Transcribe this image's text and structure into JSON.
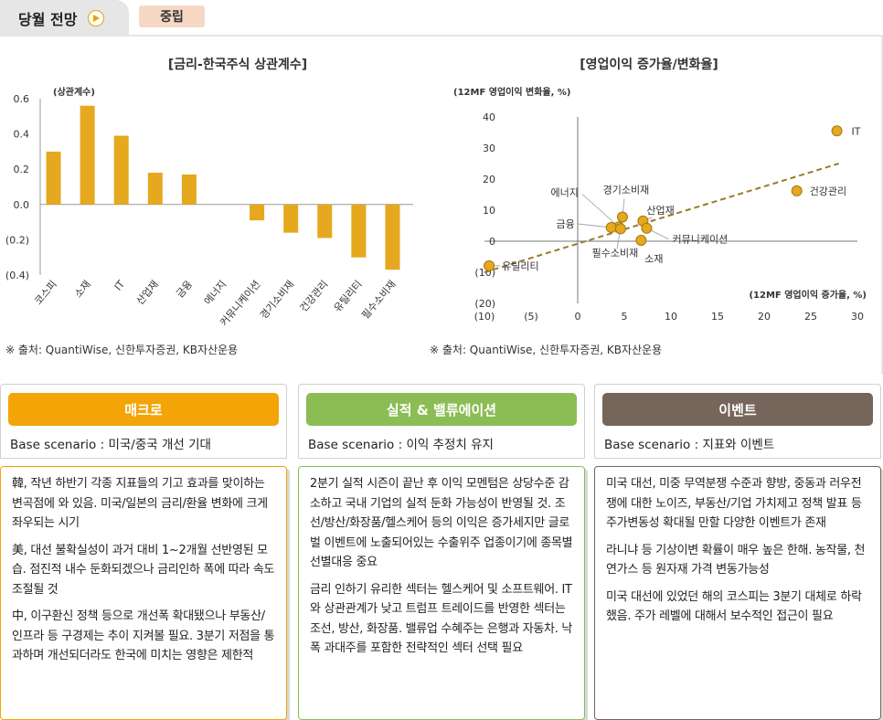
{
  "header": {
    "tab_label": "당월 전망",
    "badge": "중립"
  },
  "colors": {
    "gold": "#e5a81e",
    "macro": "#f3a407",
    "earnings": "#8bbd54",
    "events": "#75655a",
    "trend": "#9a7a2a"
  },
  "chart_data": [
    {
      "type": "bar",
      "title": "[금리-한국주식 상관계수]",
      "ylabel": "(상관계수)",
      "categories": [
        "코스피",
        "소재",
        "IT",
        "산업재",
        "금융",
        "에너지",
        "커뮤니케이션",
        "경기소비재",
        "건강관리",
        "유틸리티",
        "필수소비재"
      ],
      "values": [
        0.3,
        0.56,
        0.39,
        0.18,
        0.17,
        0.0,
        -0.09,
        -0.16,
        -0.19,
        -0.3,
        -0.37
      ],
      "ylim": [
        -0.4,
        0.6
      ],
      "yticks": [
        0.6,
        0.4,
        0.2,
        0.0,
        -0.2,
        -0.4
      ],
      "ytick_labels": [
        "0.6",
        "0.4",
        "0.2",
        "0.0",
        "(0.2)",
        "(0.4)"
      ]
    },
    {
      "type": "scatter",
      "title": "[영업이익 증가율/변화율]",
      "ylabel": "(12MF 영업이익 변화율, %)",
      "xlabel": "(12MF 영업이익 증가율, %)",
      "xlim": [
        -10,
        30
      ],
      "ylim": [
        -20,
        40
      ],
      "xticks": [
        -10,
        -5,
        0,
        5,
        10,
        15,
        20,
        25,
        30
      ],
      "xtick_labels": [
        "(10)",
        "(5)",
        "0",
        "5",
        "10",
        "15",
        "20",
        "25",
        "30"
      ],
      "yticks": [
        40,
        30,
        20,
        10,
        0,
        -10,
        -20
      ],
      "ytick_labels": [
        "40",
        "30",
        "20",
        "10",
        "0",
        "(10)",
        "(20)"
      ],
      "points": [
        {
          "name": "IT",
          "x": 27.8,
          "y": 35.5
        },
        {
          "name": "건강관리",
          "x": 23.5,
          "y": 16.2
        },
        {
          "name": "산업재",
          "x": 7.0,
          "y": 6.5
        },
        {
          "name": "커뮤니케이션",
          "x": 7.4,
          "y": 4.2
        },
        {
          "name": "경기소비재",
          "x": 4.8,
          "y": 7.8
        },
        {
          "name": "에너지",
          "x": 4.4,
          "y": 4.6
        },
        {
          "name": "금융",
          "x": 3.6,
          "y": 4.4
        },
        {
          "name": "필수소비재",
          "x": 4.6,
          "y": 4.0
        },
        {
          "name": "소재",
          "x": 6.8,
          "y": 0.3
        },
        {
          "name": "유틸리티",
          "x": -9.5,
          "y": -7.9
        }
      ],
      "trendline": [
        [
          -10,
          -10
        ],
        [
          28,
          25
        ]
      ]
    }
  ],
  "sources": {
    "left": "※ 출처: QuantiWise, 신한투자증권, KB자산운용",
    "right": "※ 출처: QuantiWise, 신한투자증권, KB자산운용"
  },
  "panels": [
    {
      "title": "매크로",
      "scenario": "Base scenario : 미국/중국 개선 기대",
      "paragraphs": [
        "韓, 작년 하반기 각종 지표들의 기고 효과를 맞이하는 변곡점에 와 있음. 미국/일본의 금리/환율 변화에 크게 좌우되는 시기",
        "美, 대선 불확실성이 과거 대비 1~2개월 선반영된 모습. 점진적 내수 둔화되겠으나 금리인하 폭에 따라 속도 조절될 것",
        "中, 이구환신 정책 등으로 개선폭 확대됐으나 부동산/인프라 등 구경제는 추이 지켜볼 필요. 3분기 저점을 통과하며 개선되더라도 한국에 미치는 영향은 제한적"
      ]
    },
    {
      "title": "실적 & 밸류에이션",
      "scenario": "Base scenario : 이익 추정치 유지",
      "paragraphs": [
        "2분기 실적 시즌이 끝난 후 이익 모멘텀은 상당수준 감소하고 국내 기업의 실적 둔화 가능성이 반영될 것. 조선/방산/화장품/헬스케어 등의 이익은 증가세지만 글로벌 이벤트에 노출되어있는 수출위주 업종이기에 종목별 선별대응 중요",
        "금리 인하기 유리한 섹터는 헬스케어 및 소프트웨어. IT와 상관관계가 낮고 트럼프 트레이드를 반영한 섹터는 조선, 방산, 화장품. 밸류업 수혜주는 은행과 자동차. 낙폭 과대주를 포함한 전략적인 섹터 선택 필요"
      ]
    },
    {
      "title": "이벤트",
      "scenario": "Base scenario : 지표와 이벤트",
      "paragraphs": [
        "미국 대선, 미중 무역분쟁 수준과 향방, 중동과 러우전쟁에 대한 노이즈, 부동산/기업 가치제고 정책 발표 등 주가변동성 확대될 만할 다양한 이벤트가 존재",
        "라니냐 등 기상이변 확률이 매우 높은 한해. 농작물, 천연가스 등 원자재 가격 변동가능성",
        "미국 대선에 있었던 해의 코스피는 3분기 대체로 하락했음. 주가 레벨에 대해서 보수적인 접근이 필요"
      ]
    }
  ]
}
